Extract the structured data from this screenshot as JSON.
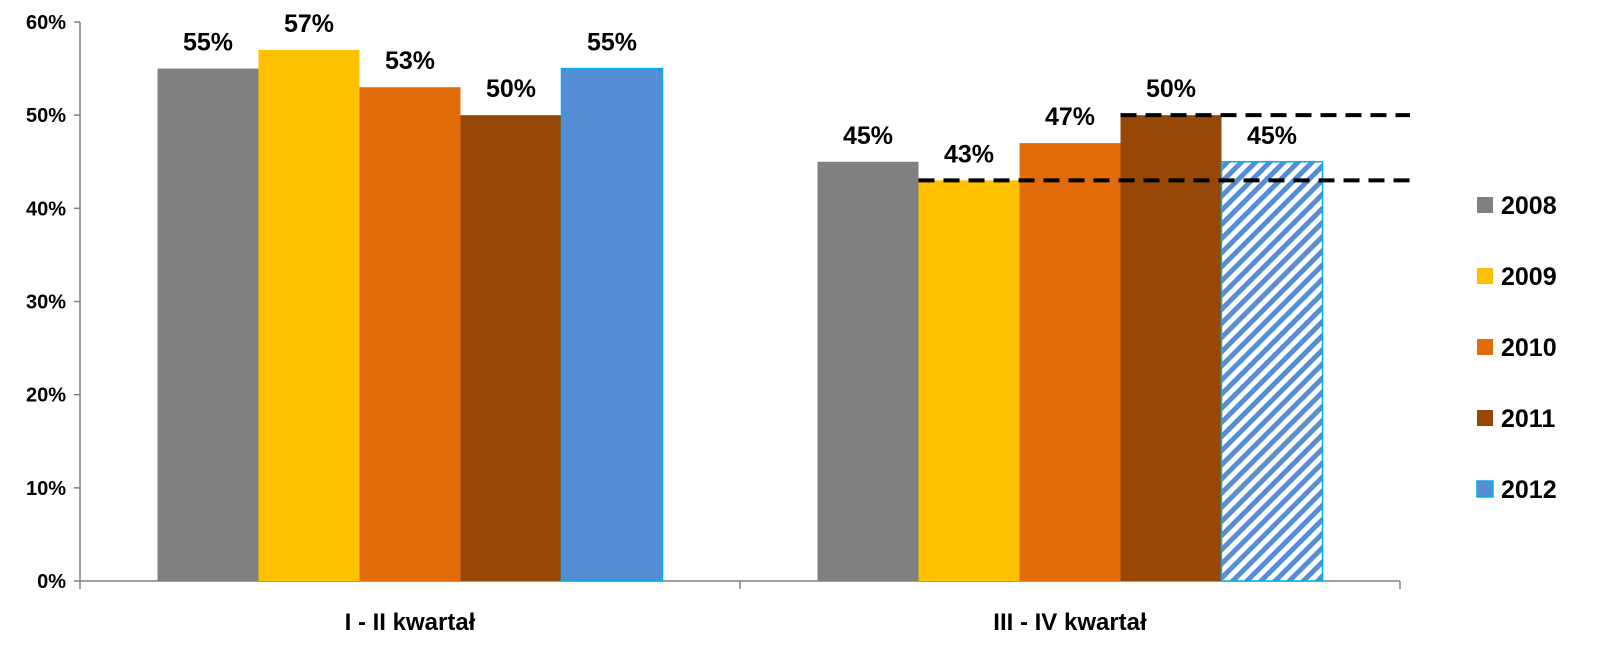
{
  "chart_data": {
    "type": "bar",
    "categories": [
      "I - II kwartał",
      "III - IV kwartał"
    ],
    "series": [
      {
        "name": "2008",
        "values": [
          55,
          45
        ],
        "labels": [
          "55%",
          "45%"
        ],
        "color": "#808080"
      },
      {
        "name": "2009",
        "values": [
          57,
          43
        ],
        "labels": [
          "57%",
          "43%"
        ],
        "color": "#ffc000"
      },
      {
        "name": "2010",
        "values": [
          53,
          47
        ],
        "labels": [
          "53%",
          "47%"
        ],
        "color": "#e36c0a"
      },
      {
        "name": "2011",
        "values": [
          50,
          50
        ],
        "labels": [
          "50%",
          "50%"
        ],
        "color": "#974806"
      },
      {
        "name": "2012",
        "values": [
          55,
          45
        ],
        "labels": [
          "55%",
          "45%"
        ],
        "color": "#558ed5",
        "hatched_categories": [
          1
        ]
      }
    ],
    "ylim": [
      0,
      60
    ],
    "yticks": [
      "0%",
      "10%",
      "20%",
      "30%",
      "40%",
      "50%",
      "60%"
    ],
    "reference_lines": [
      {
        "y": 43,
        "style": "dashed",
        "color": "#000000"
      },
      {
        "y": 50,
        "style": "dashed",
        "color": "#000000"
      }
    ],
    "legend_position": "right",
    "grid": false
  }
}
